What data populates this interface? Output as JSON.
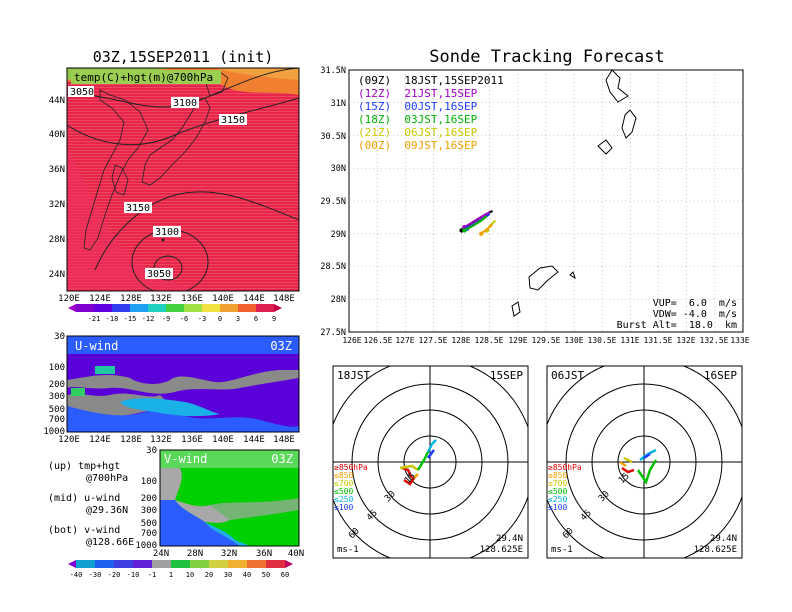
{
  "left_title": "03Z,15SEP2011 (init)",
  "right_title": "Sonde Tracking Forecast",
  "map_panel": {
    "label": "temp(C)+hgt(m)@700hPa",
    "contours": [
      "3050",
      "3100",
      "3150",
      "3150",
      "3100",
      "3050"
    ],
    "lat_ticks": [
      "44N",
      "40N",
      "36N",
      "32N",
      "28N",
      "24N"
    ],
    "lon_ticks": [
      "120E",
      "124E",
      "128E",
      "132E",
      "136E",
      "140E",
      "144E",
      "148E"
    ],
    "colorbar_ticks": [
      "-21",
      "-18",
      "-15",
      "-12",
      "-9",
      "-6",
      "-3",
      "0",
      "3",
      "6",
      "9"
    ]
  },
  "uwind_panel": {
    "label": "U-wind",
    "time": "03Z",
    "p_ticks": [
      "30",
      "100",
      "200",
      "300",
      "500",
      "700",
      "1000"
    ],
    "lon_ticks": [
      "120E",
      "124E",
      "128E",
      "132E",
      "136E",
      "140E",
      "144E",
      "148E"
    ]
  },
  "vwind_panel": {
    "label": "V-wind",
    "time": "03Z",
    "p_ticks": [
      "30",
      "100",
      "200",
      "300",
      "500",
      "700",
      "1000"
    ],
    "lat_ticks": [
      "24N",
      "28N",
      "32N",
      "36N",
      "40N"
    ],
    "colorbar_ticks": [
      "-40",
      "-30",
      "-20",
      "-10",
      "-1",
      "1",
      "10",
      "20",
      "30",
      "40",
      "50",
      "60"
    ]
  },
  "legend_notes": [
    "(up) tmp+hgt",
    "@700hPa",
    "(mid) u-wind",
    "@29.36N",
    "(bot) v-wind",
    "@128.66E"
  ],
  "track_map": {
    "lat_ticks": [
      "31.5N",
      "31N",
      "30.5N",
      "30N",
      "29.5N",
      "29N",
      "28.5N",
      "28N",
      "27.5N"
    ],
    "lon_ticks": [
      "126E",
      "126.5E",
      "127E",
      "127.5E",
      "128E",
      "128.5E",
      "129E",
      "129.5E",
      "130E",
      "130.5E",
      "131E",
      "131.5E",
      "132E",
      "132.5E",
      "133E"
    ],
    "legend": [
      {
        "text": "(09Z)  18JST,15SEP2011",
        "color": "#000000"
      },
      {
        "text": "(12Z)  21JST,15SEP",
        "color": "#a000c0"
      },
      {
        "text": "(15Z)  00JST,16SEP",
        "color": "#1e3cff"
      },
      {
        "text": "(18Z)  03JST,16SEP",
        "color": "#00b400"
      },
      {
        "text": "(21Z)  06JST,16SEP",
        "color": "#c8c800"
      },
      {
        "text": "(00Z)  09JST,16SEP",
        "color": "#f0a000"
      }
    ],
    "params": [
      "VUP=  6.0  m/s",
      "VDW= -4.0  m/s",
      "Burst Alt=  18.0  km"
    ]
  },
  "hodographs": [
    {
      "time": "18JST",
      "date": "15SEP",
      "lat": "29.4N",
      "lon": "128.625E",
      "unit": "ms-1",
      "rings": [
        "15",
        "30",
        "45",
        "60"
      ]
    },
    {
      "time": "06JST",
      "date": "16SEP",
      "lat": "29.4N",
      "lon": "128.625E",
      "unit": "ms-1",
      "rings": [
        "15",
        "30",
        "45",
        "60"
      ]
    }
  ],
  "hodo_levels": [
    {
      "text": "≥850hPa",
      "color": "#e00000"
    },
    {
      "text": "≤850",
      "color": "#f0a000"
    },
    {
      "text": "≤700",
      "color": "#c8c800"
    },
    {
      "text": "≤500",
      "color": "#00c000"
    },
    {
      "text": "≤250",
      "color": "#00b4e0"
    },
    {
      "text": "≤100",
      "color": "#1e3cff"
    }
  ],
  "chart_data": {
    "type": "line",
    "title": "Sonde Tracking Forecast",
    "x_range": [
      126,
      133
    ],
    "y_range": [
      27.5,
      31.5
    ],
    "series": [
      {
        "name": "(09Z)  18JST,15SEP2011",
        "x": [
          128.0,
          128.1,
          128.25,
          128.4,
          128.55
        ],
        "y": [
          29.05,
          29.12,
          29.2,
          29.28,
          29.35
        ]
      },
      {
        "name": "(12Z)  21JST,15SEP",
        "x": [
          128.05,
          128.2,
          128.35,
          128.5
        ],
        "y": [
          29.1,
          29.18,
          29.26,
          29.33
        ]
      },
      {
        "name": "(15Z)  00JST,16SEP",
        "x": [
          128.1,
          128.25,
          128.4,
          128.5
        ],
        "y": [
          29.08,
          29.16,
          29.24,
          29.3
        ]
      },
      {
        "name": "(18Z)  03JST,16SEP",
        "x": [
          128.05,
          128.2,
          128.35,
          128.45
        ],
        "y": [
          29.05,
          29.12,
          29.2,
          29.27
        ]
      },
      {
        "name": "(21Z)  06JST,16SEP",
        "x": [
          128.45,
          128.5,
          128.6
        ],
        "y": [
          29.05,
          29.12,
          29.2
        ]
      },
      {
        "name": "(00Z)  09JST,16SEP",
        "x": [
          128.35,
          128.45,
          128.55
        ],
        "y": [
          29.0,
          29.07,
          29.14
        ]
      }
    ]
  }
}
